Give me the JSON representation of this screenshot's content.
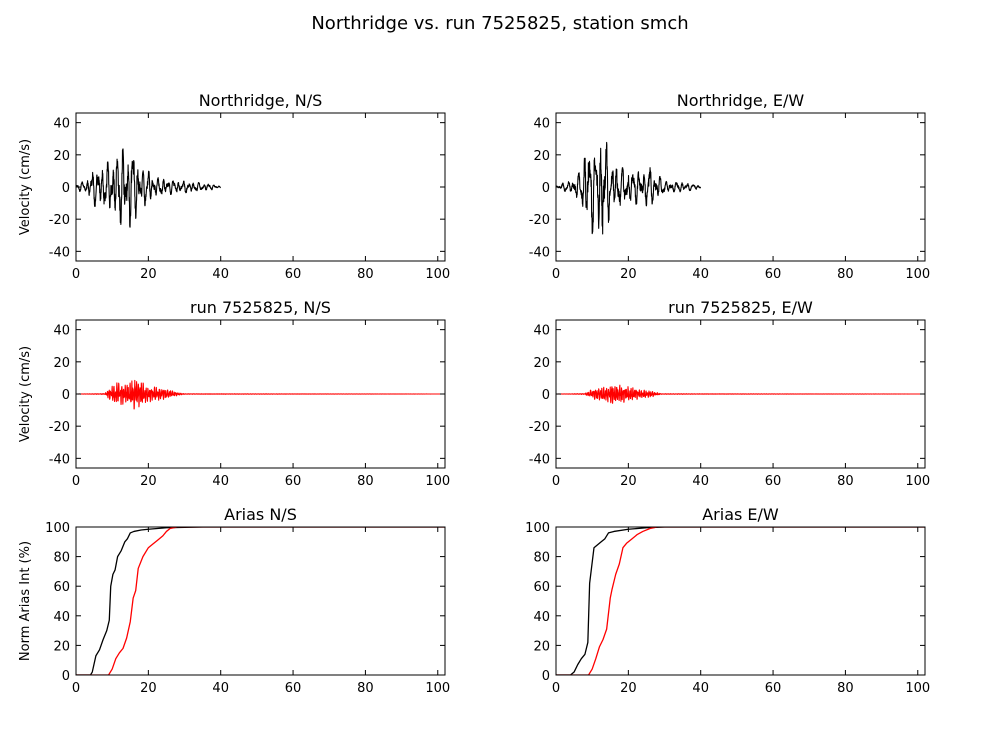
{
  "figure": {
    "title": "Northridge vs. run 7525825, station smch"
  },
  "colors": {
    "recorded": "#000000",
    "simulated": "#ff0000"
  },
  "chart_data": [
    {
      "id": "p1",
      "type": "line",
      "title": "Northridge, N/S",
      "ylabel": "Velocity (cm/s)",
      "xlim": [
        0,
        102
      ],
      "ylim": [
        -46,
        46
      ],
      "xticks": [
        0,
        20,
        40,
        60,
        80,
        100
      ],
      "yticks": [
        -40,
        -20,
        0,
        20,
        40
      ],
      "series": [
        {
          "color": "#000000",
          "kind": "wave",
          "t_start": 0,
          "t_end": 40,
          "peak": 25,
          "env": [
            [
              0,
              2
            ],
            [
              3,
              4
            ],
            [
              5,
              12
            ],
            [
              7,
              12
            ],
            [
              10,
              18
            ],
            [
              12,
              23
            ],
            [
              15,
              25
            ],
            [
              18,
              14
            ],
            [
              22,
              6
            ],
            [
              28,
              4
            ],
            [
              33,
              3
            ],
            [
              37,
              2
            ],
            [
              40,
              0.5
            ]
          ],
          "period": 1.4
        }
      ]
    },
    {
      "id": "p2",
      "type": "line",
      "title": "Northridge, E/W",
      "ylabel": "",
      "xlim": [
        0,
        102
      ],
      "ylim": [
        -46,
        46
      ],
      "xticks": [
        0,
        20,
        40,
        60,
        80,
        100
      ],
      "yticks": [
        -40,
        -20,
        0,
        20,
        40
      ],
      "series": [
        {
          "color": "#000000",
          "kind": "wave",
          "t_start": 0,
          "t_end": 40,
          "peak": 42,
          "env": [
            [
              0,
              1
            ],
            [
              4,
              4
            ],
            [
              7,
              10
            ],
            [
              9,
              38
            ],
            [
              11,
              20
            ],
            [
              13,
              40
            ],
            [
              15,
              16
            ],
            [
              20,
              10
            ],
            [
              26,
              12
            ],
            [
              30,
              4
            ],
            [
              35,
              3
            ],
            [
              40,
              1
            ]
          ],
          "period": 1.5
        }
      ]
    },
    {
      "id": "p3",
      "type": "line",
      "title": "run 7525825, N/S",
      "ylabel": "Velocity (cm/s)",
      "xlim": [
        0,
        102
      ],
      "ylim": [
        -46,
        46
      ],
      "xticks": [
        0,
        20,
        40,
        60,
        80,
        100
      ],
      "yticks": [
        -40,
        -20,
        0,
        20,
        40
      ],
      "series": [
        {
          "color": "#ff0000",
          "kind": "wave",
          "t_start": 0,
          "t_end": 102,
          "peak": 10,
          "env": [
            [
              0,
              0
            ],
            [
              8,
              0.3
            ],
            [
              9,
              3
            ],
            [
              11,
              7
            ],
            [
              14,
              6
            ],
            [
              16,
              10
            ],
            [
              20,
              5
            ],
            [
              25,
              3
            ],
            [
              28,
              1
            ],
            [
              30,
              0.2
            ],
            [
              102,
              0
            ]
          ],
          "period": 0.45
        }
      ]
    },
    {
      "id": "p4",
      "type": "line",
      "title": "run 7525825, E/W",
      "ylabel": "",
      "xlim": [
        0,
        102
      ],
      "ylim": [
        -46,
        46
      ],
      "xticks": [
        0,
        20,
        40,
        60,
        80,
        100
      ],
      "yticks": [
        -40,
        -20,
        0,
        20,
        40
      ],
      "series": [
        {
          "color": "#ff0000",
          "kind": "wave",
          "t_start": 0,
          "t_end": 102,
          "peak": 6,
          "env": [
            [
              0,
              0
            ],
            [
              8,
              0.3
            ],
            [
              10,
              3
            ],
            [
              13,
              4
            ],
            [
              16,
              6
            ],
            [
              19,
              5
            ],
            [
              23,
              3
            ],
            [
              27,
              1.5
            ],
            [
              29,
              0.2
            ],
            [
              102,
              0
            ]
          ],
          "period": 0.45
        }
      ]
    },
    {
      "id": "p5",
      "type": "line",
      "title": "Arias N/S",
      "ylabel": "Norm Arias Int (%)",
      "xlim": [
        0,
        102
      ],
      "ylim": [
        0,
        100
      ],
      "xticks": [
        0,
        20,
        40,
        60,
        80,
        100
      ],
      "yticks": [
        0,
        20,
        40,
        60,
        80,
        100
      ],
      "series": [
        {
          "color": "#000000",
          "kind": "curve",
          "points": [
            [
              0,
              0
            ],
            [
              4,
              0
            ],
            [
              4.5,
              2
            ],
            [
              5.5,
              13
            ],
            [
              6.5,
              17
            ],
            [
              7.5,
              24
            ],
            [
              8.5,
              30
            ],
            [
              9.2,
              37
            ],
            [
              9.6,
              60
            ],
            [
              10.2,
              68
            ],
            [
              10.8,
              71
            ],
            [
              11.5,
              80
            ],
            [
              12.5,
              84
            ],
            [
              13.5,
              90
            ],
            [
              14.2,
              92
            ],
            [
              15,
              96
            ],
            [
              16,
              97
            ],
            [
              18,
              98
            ],
            [
              20,
              98.5
            ],
            [
              25,
              99.5
            ],
            [
              35,
              100
            ],
            [
              102,
              100
            ]
          ]
        },
        {
          "color": "#ff0000",
          "kind": "curve",
          "points": [
            [
              0,
              0
            ],
            [
              9,
              0
            ],
            [
              10,
              4
            ],
            [
              11,
              11
            ],
            [
              12,
              15
            ],
            [
              13,
              18
            ],
            [
              14,
              25
            ],
            [
              15,
              36
            ],
            [
              15.8,
              52
            ],
            [
              16.5,
              57
            ],
            [
              17.2,
              72
            ],
            [
              18.5,
              80
            ],
            [
              20,
              86
            ],
            [
              21,
              88
            ],
            [
              22.5,
              91
            ],
            [
              24,
              94
            ],
            [
              25,
              97
            ],
            [
              26,
              99
            ],
            [
              28,
              100
            ],
            [
              102,
              100
            ]
          ]
        }
      ]
    },
    {
      "id": "p6",
      "type": "line",
      "title": "Arias E/W",
      "ylabel": "",
      "xlim": [
        0,
        102
      ],
      "ylim": [
        0,
        100
      ],
      "xticks": [
        0,
        20,
        40,
        60,
        80,
        100
      ],
      "yticks": [
        0,
        20,
        40,
        60,
        80,
        100
      ],
      "series": [
        {
          "color": "#000000",
          "kind": "curve",
          "points": [
            [
              0,
              0
            ],
            [
              4,
              0
            ],
            [
              5,
              2
            ],
            [
              6,
              7
            ],
            [
              7,
              11
            ],
            [
              8,
              14
            ],
            [
              8.8,
              22
            ],
            [
              9.3,
              62
            ],
            [
              9.8,
              72
            ],
            [
              10.5,
              86
            ],
            [
              11.5,
              88
            ],
            [
              12.5,
              90
            ],
            [
              13.5,
              92
            ],
            [
              14.5,
              96
            ],
            [
              16,
              97
            ],
            [
              20,
              98.5
            ],
            [
              25,
              99.5
            ],
            [
              30,
              100
            ],
            [
              102,
              100
            ]
          ]
        },
        {
          "color": "#ff0000",
          "kind": "curve",
          "points": [
            [
              0,
              0
            ],
            [
              9,
              0
            ],
            [
              10,
              4
            ],
            [
              11,
              11
            ],
            [
              12,
              19
            ],
            [
              13,
              24
            ],
            [
              14,
              31
            ],
            [
              15,
              52
            ],
            [
              15.5,
              58
            ],
            [
              16.5,
              68
            ],
            [
              17.5,
              75
            ],
            [
              18.5,
              86
            ],
            [
              19.5,
              89
            ],
            [
              21,
              92
            ],
            [
              22.5,
              95
            ],
            [
              24,
              97
            ],
            [
              26,
              99
            ],
            [
              28,
              100
            ],
            [
              102,
              100
            ]
          ]
        }
      ]
    }
  ]
}
